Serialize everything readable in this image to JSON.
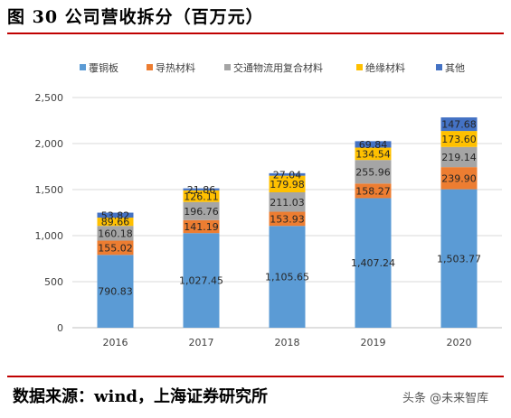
{
  "figure": {
    "title": "图 30 公司营收拆分（百万元）",
    "source": "数据来源：wind，上海证券研究所",
    "watermark": "头条 @未来智库"
  },
  "chart_data": {
    "type": "bar",
    "stacked": true,
    "categories": [
      "2016",
      "2017",
      "2018",
      "2019",
      "2020"
    ],
    "series": [
      {
        "name": "覆铜板",
        "color": "#5b9bd5",
        "values": [
          790.83,
          1027.45,
          1105.65,
          1407.24,
          1503.77
        ],
        "labels": [
          "790.83",
          "1,027.45",
          "1,105.65",
          "1,407.24",
          "1,503.77"
        ]
      },
      {
        "name": "导热材料",
        "color": "#ed7d31",
        "values": [
          155.02,
          141.19,
          153.93,
          158.27,
          239.9
        ],
        "labels": [
          "155.02",
          "141.19",
          "153.93",
          "158.27",
          "239.90"
        ]
      },
      {
        "name": "交通物流用复合材料",
        "color": "#a5a5a5",
        "values": [
          160.18,
          196.76,
          211.03,
          255.96,
          219.14
        ],
        "labels": [
          "160.18",
          "196.76",
          "211.03",
          "255.96",
          "219.14"
        ]
      },
      {
        "name": "绝缘材料",
        "color": "#ffc000",
        "values": [
          89.66,
          126.11,
          179.98,
          134.54,
          173.6
        ],
        "labels": [
          "89.66",
          "126.11",
          "179.98",
          "134.54",
          "173.60"
        ]
      },
      {
        "name": "其他",
        "color": "#4472c4",
        "values": [
          53.82,
          21.86,
          27.04,
          69.84,
          147.68
        ],
        "labels": [
          "53.82",
          "21.86",
          "27.04",
          "69.84",
          "147.68"
        ]
      }
    ],
    "ylim": [
      0,
      2500
    ],
    "yticks": [
      "0",
      "500",
      "1,000",
      "1,500",
      "2,000",
      "2,500"
    ],
    "grid": true,
    "legend_position": "top"
  }
}
